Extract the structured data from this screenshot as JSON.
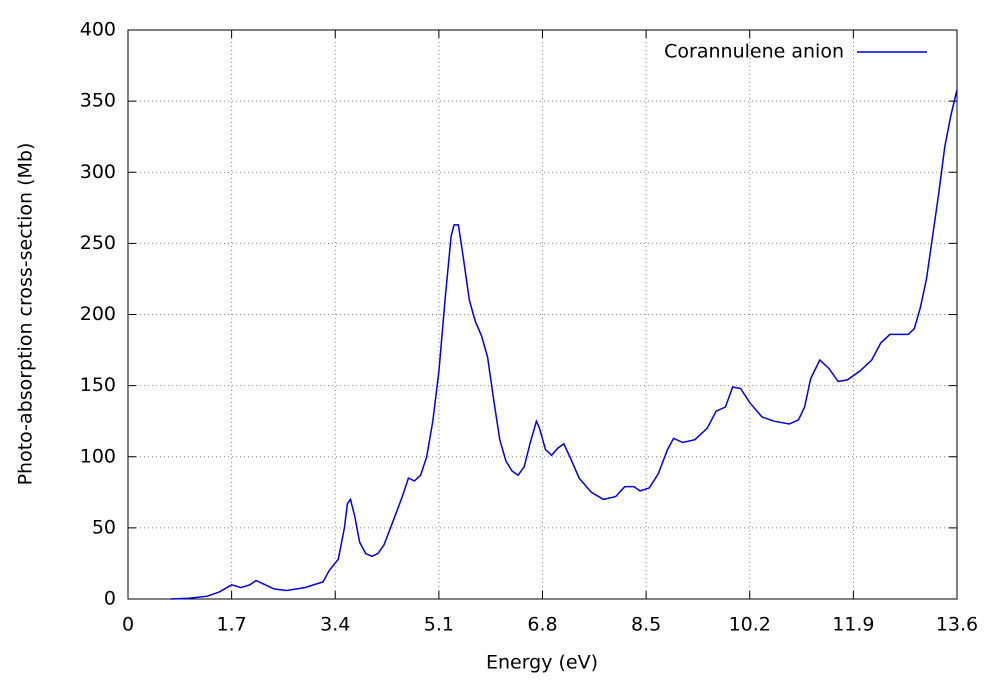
{
  "chart_data": {
    "type": "line",
    "xlabel": "Energy (eV)",
    "ylabel": "Photo-absorption cross-section (Mb)",
    "xlim": [
      0,
      13.6
    ],
    "ylim": [
      0,
      400
    ],
    "xticks": [
      0,
      1.7,
      3.4,
      5.1,
      6.8,
      8.5,
      10.2,
      11.9,
      13.6
    ],
    "yticks": [
      0,
      50,
      100,
      150,
      200,
      250,
      300,
      350,
      400
    ],
    "grid": true,
    "legend": "upper right",
    "series": [
      {
        "name": "Corannulene anion",
        "color": "#0000e0",
        "x": [
          0.7,
          1.0,
          1.3,
          1.5,
          1.7,
          1.85,
          2.0,
          2.1,
          2.25,
          2.4,
          2.6,
          2.9,
          3.2,
          3.3,
          3.45,
          3.55,
          3.6,
          3.65,
          3.72,
          3.8,
          3.9,
          4.0,
          4.1,
          4.2,
          4.35,
          4.5,
          4.6,
          4.7,
          4.8,
          4.9,
          5.0,
          5.1,
          5.2,
          5.3,
          5.35,
          5.42,
          5.5,
          5.6,
          5.7,
          5.8,
          5.9,
          6.0,
          6.1,
          6.2,
          6.3,
          6.4,
          6.5,
          6.6,
          6.7,
          6.75,
          6.85,
          6.95,
          7.05,
          7.15,
          7.25,
          7.4,
          7.6,
          7.8,
          8.0,
          8.15,
          8.3,
          8.4,
          8.55,
          8.7,
          8.85,
          8.95,
          9.1,
          9.3,
          9.5,
          9.65,
          9.8,
          9.92,
          10.05,
          10.2,
          10.4,
          10.6,
          10.85,
          11.0,
          11.1,
          11.2,
          11.35,
          11.5,
          11.65,
          11.8,
          12.0,
          12.2,
          12.35,
          12.5,
          12.65,
          12.8,
          12.9,
          13.0,
          13.1,
          13.2,
          13.3,
          13.4,
          13.5,
          13.6
        ],
        "values": [
          0,
          0.5,
          2,
          5,
          10,
          8,
          10,
          13,
          10,
          7,
          6,
          8,
          12,
          20,
          28,
          50,
          67,
          70,
          58,
          40,
          32,
          30,
          32,
          38,
          55,
          72,
          85,
          83,
          87,
          100,
          125,
          160,
          210,
          255,
          263,
          263,
          240,
          210,
          195,
          185,
          170,
          140,
          112,
          97,
          90,
          87,
          93,
          110,
          125,
          120,
          105,
          101,
          106,
          109,
          100,
          85,
          75,
          70,
          72,
          79,
          79,
          76,
          78,
          88,
          105,
          113,
          110,
          112,
          120,
          132,
          135,
          149,
          148,
          138,
          128,
          125,
          123,
          126,
          135,
          155,
          168,
          162,
          153,
          154,
          160,
          168,
          180,
          186,
          186,
          186,
          190,
          205,
          225,
          255,
          285,
          318,
          340,
          358
        ]
      }
    ]
  }
}
